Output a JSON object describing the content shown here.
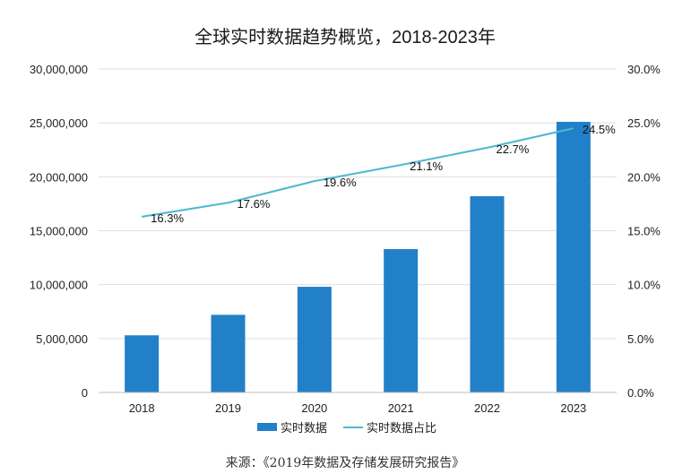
{
  "chart_data": {
    "type": "bar",
    "title": "全球实时数据趋势概览，2018-2023年",
    "categories": [
      "2018",
      "2019",
      "2020",
      "2021",
      "2022",
      "2023"
    ],
    "series": [
      {
        "name": "实时数据",
        "type": "bar",
        "axis": "left",
        "color": "#2280c9",
        "values": [
          5300000,
          7200000,
          9800000,
          13300000,
          18200000,
          25100000
        ]
      },
      {
        "name": "实时数据占比",
        "type": "line",
        "axis": "right",
        "color": "#4cb8cf",
        "values": [
          16.3,
          17.6,
          19.6,
          21.1,
          22.7,
          24.5
        ],
        "labels": [
          "16.3%",
          "17.6%",
          "19.6%",
          "21.1%",
          "22.7%",
          "24.5%"
        ]
      }
    ],
    "y_left": {
      "ylim": [
        0,
        30000000
      ],
      "ticks": [
        0,
        5000000,
        10000000,
        15000000,
        20000000,
        25000000,
        30000000
      ],
      "tick_labels": [
        "0",
        "5,000,000",
        "10,000,000",
        "15,000,000",
        "20,000,000",
        "25,000,000",
        "30,000,000"
      ]
    },
    "y_right": {
      "ylim": [
        0,
        30
      ],
      "ticks": [
        0,
        5,
        10,
        15,
        20,
        25,
        30
      ],
      "tick_labels": [
        "0.0%",
        "5.0%",
        "10.0%",
        "15.0%",
        "20.0%",
        "25.0%",
        "30.0%"
      ]
    },
    "grid": true,
    "legend_position": "bottom",
    "source": "来源：《2019年数据及存储发展研究报告》"
  }
}
